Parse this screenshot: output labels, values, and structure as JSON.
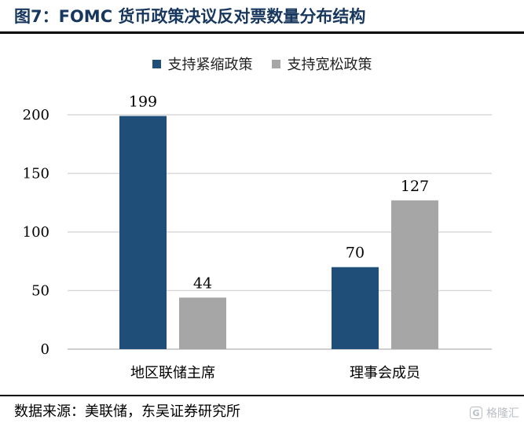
{
  "figure": {
    "title": "图7：FOMC 货币政策决议反对票数量分布结构",
    "source": "数据来源：美联储，东吴证券研究所",
    "watermark": "格隆汇"
  },
  "colors": {
    "title": "#17375e",
    "series_tight": "#1f4e79",
    "series_easy": "#a6a6a6",
    "grid": "#d9d9d9"
  },
  "chart_data": {
    "type": "bar",
    "title": "",
    "xlabel": "",
    "ylabel": "",
    "categories": [
      "地区联储主席",
      "理事会成员"
    ],
    "series": [
      {
        "name": "支持紧缩政策",
        "values": [
          199,
          70
        ]
      },
      {
        "name": "支持宽松政策",
        "values": [
          44,
          127
        ]
      }
    ],
    "ylim": [
      0,
      200
    ],
    "yticks": [
      "0",
      "50",
      "100",
      "150",
      "200"
    ],
    "grid": true,
    "legend_position": "top-center",
    "data_labels": true
  }
}
